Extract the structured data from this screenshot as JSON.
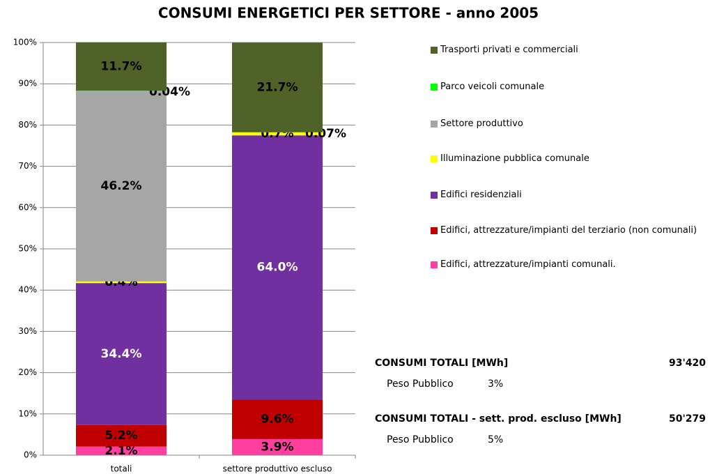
{
  "chart_data": {
    "type": "stacked_bar_100",
    "title": "CONSUMI ENERGETICI PER SETTORE - anno 2005",
    "categories": [
      "totali",
      "settore produttivo escluso"
    ],
    "ylim": [
      0,
      100
    ],
    "yticks": [
      {
        "value": 0,
        "label": "0%"
      },
      {
        "value": 10,
        "label": "10%"
      },
      {
        "value": 20,
        "label": "20%"
      },
      {
        "value": 30,
        "label": "30%"
      },
      {
        "value": 40,
        "label": "40%"
      },
      {
        "value": 50,
        "label": "50%"
      },
      {
        "value": 60,
        "label": "60%"
      },
      {
        "value": 70,
        "label": "70%"
      },
      {
        "value": 80,
        "label": "80%"
      },
      {
        "value": 90,
        "label": "90%"
      },
      {
        "value": 100,
        "label": "100%"
      }
    ],
    "grid": true,
    "legend": "right",
    "series": [
      {
        "name": "Edifici, attrezzature/impianti comunali.",
        "color": "#ff3f9f",
        "label_color": "#000000",
        "values": [
          2.1,
          3.9
        ],
        "value_labels": [
          "2.1%",
          "3.9%"
        ]
      },
      {
        "name": "Edifici, attrezzature/impianti del terziario (non comunali)",
        "color": "#c00000",
        "label_color": "#000000",
        "values": [
          5.2,
          9.6
        ],
        "value_labels": [
          "5.2%",
          "9.6%"
        ]
      },
      {
        "name": "Edifici residenziali",
        "color": "#7030a0",
        "label_color": "#ffffff",
        "values": [
          34.4,
          64.0
        ],
        "value_labels": [
          "34.4%",
          "64.0%"
        ]
      },
      {
        "name": "Illuminazione pubblica comunale",
        "color": "#ffff00",
        "label_color": "#000000",
        "values": [
          0.4,
          0.7
        ],
        "value_labels": [
          "0.4%",
          "0.7%"
        ]
      },
      {
        "name": "Settore produttivo",
        "color": "#a6a6a6",
        "label_color": "#000000",
        "values": [
          46.2,
          null
        ],
        "value_labels": [
          "46.2%",
          null
        ]
      },
      {
        "name": "Parco veicoli comunale",
        "color": "#00ff00",
        "label_color": "#000000",
        "values": [
          0.04,
          0.07
        ],
        "value_labels": [
          "0.04%",
          "0.07%"
        ]
      },
      {
        "name": "Trasporti privati e commerciali",
        "color": "#4f6228",
        "label_color": "#000000",
        "values": [
          11.7,
          21.7
        ],
        "value_labels": [
          "11.7%",
          "21.7%"
        ]
      }
    ]
  },
  "summary": [
    {
      "label": "CONSUMI TOTALI [MWh]",
      "value": "93'420",
      "sub_label": "Peso Pubblico",
      "sub_value": "3%"
    },
    {
      "label": "CONSUMI TOTALI - sett. prod. escluso [MWh]",
      "value": "50'279",
      "sub_label": "Peso Pubblico",
      "sub_value": "5%"
    }
  ]
}
